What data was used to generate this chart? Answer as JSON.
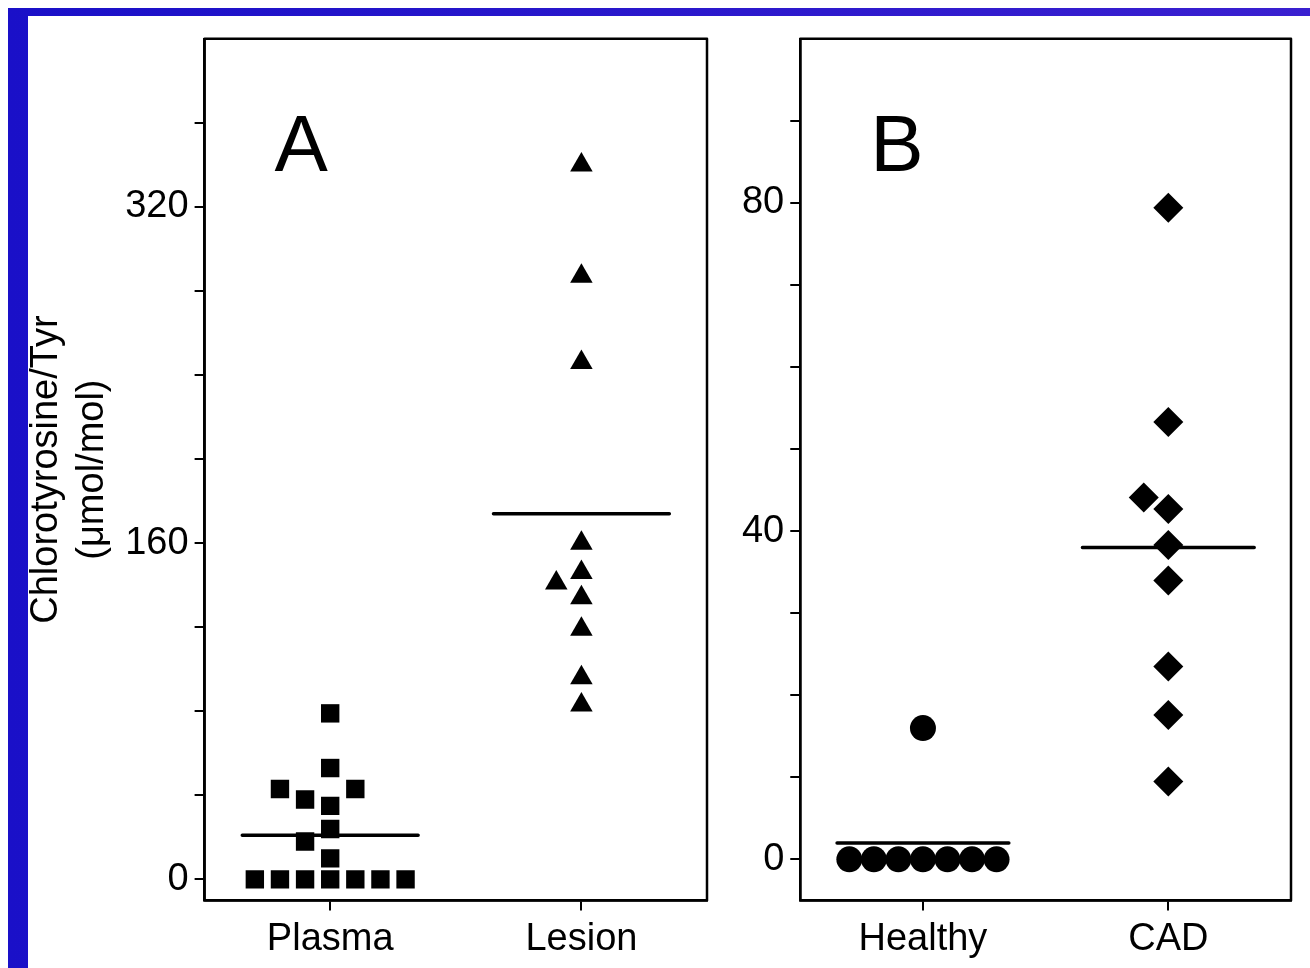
{
  "chart_data": [
    {
      "type": "scatter",
      "ylabel": "Chlorotyrosine/Tyr\n(μmol/mol)",
      "annotations": [
        "A"
      ],
      "grid": false,
      "categories": [
        "Plasma",
        "Lesion"
      ],
      "ylim": [
        -10,
        400
      ],
      "yticks": [
        0,
        {
          "value": 40,
          "label": null
        },
        {
          "value": 80,
          "label": null
        },
        {
          "value": 120,
          "label": null
        },
        160,
        {
          "value": 200,
          "label": null
        },
        {
          "value": 240,
          "label": null
        },
        {
          "value": 280,
          "label": null
        },
        320,
        {
          "value": 360,
          "label": null
        }
      ],
      "series": [
        {
          "type": "scatter",
          "marker": "square",
          "color": "#000000",
          "x": [
            "Plasma",
            "Plasma",
            "Plasma",
            "Plasma",
            "Plasma",
            "Plasma",
            "Plasma",
            "Plasma",
            "Plasma",
            "Plasma",
            "Plasma",
            "Plasma",
            "Plasma",
            "Plasma",
            "Plasma",
            "Plasma"
          ],
          "values": [
            0,
            0,
            0,
            0,
            0,
            0,
            0,
            10,
            24,
            18,
            35,
            43,
            38,
            43,
            53,
            79
          ]
        },
        {
          "type": "scatter",
          "marker": "triangle",
          "color": "#000000",
          "x": [
            "Lesion",
            "Lesion",
            "Lesion",
            "Lesion",
            "Lesion",
            "Lesion",
            "Lesion",
            "Lesion",
            "Lesion",
            "Lesion"
          ],
          "values": [
            340,
            287,
            246,
            160,
            146,
            141,
            134,
            119,
            96,
            83
          ]
        },
        {
          "type": "box",
          "color": "#000000",
          "boxes": [
            {
              "low": 21,
              "q1": 21,
              "median": 21,
              "q3": 21,
              "high": 21
            },
            {
              "low": 174,
              "q1": 174,
              "median": 174,
              "q3": 174,
              "high": 174
            }
          ]
        }
      ]
    },
    {
      "type": "scatter",
      "annotations": [
        "B"
      ],
      "grid": false,
      "categories": [
        "Healthy",
        "CAD"
      ],
      "ylim": [
        -5,
        100
      ],
      "yticks": [
        0,
        {
          "value": 10,
          "label": null
        },
        {
          "value": 20,
          "label": null
        },
        {
          "value": 30,
          "label": null
        },
        40,
        {
          "value": 50,
          "label": null
        },
        {
          "value": 60,
          "label": null
        },
        {
          "value": 70,
          "label": null
        },
        80,
        {
          "value": 90,
          "label": null
        }
      ],
      "series": [
        {
          "type": "scatter",
          "marker": "circle",
          "color": "#000000",
          "x": [
            "Healthy",
            "Healthy",
            "Healthy",
            "Healthy",
            "Healthy",
            "Healthy",
            "Healthy",
            "Healthy"
          ],
          "values": [
            0,
            0,
            0,
            0,
            0,
            0,
            0,
            16
          ]
        },
        {
          "type": "scatter",
          "marker": "diamond",
          "color": "#000000",
          "x": [
            "CAD",
            "CAD",
            "CAD",
            "CAD",
            "CAD",
            "CAD",
            "CAD",
            "CAD",
            "CAD"
          ],
          "values": [
            79.4,
            53.3,
            44.1,
            42.7,
            38.3,
            34,
            23.5,
            17.6,
            9.5
          ]
        },
        {
          "type": "box",
          "color": "#000000",
          "boxes": [
            {
              "low": 2,
              "q1": 2,
              "median": 2,
              "q3": 2,
              "high": 2
            },
            {
              "low": 38,
              "q1": 38,
              "median": 38,
              "q3": 38,
              "high": 38
            }
          ]
        }
      ]
    }
  ]
}
